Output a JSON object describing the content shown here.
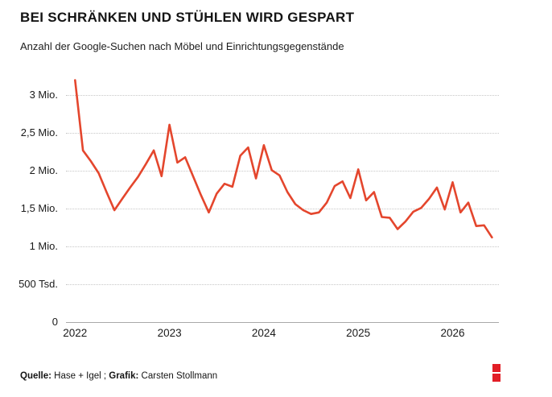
{
  "header": {
    "title": "BEI SCHRÄNKEN UND STÜHLEN WIRD GESPART",
    "subtitle": "Anzahl der Google-Suchen nach Möbel und Einrichtungsgegenstände"
  },
  "footer": {
    "source_label": "Quelle:",
    "source_value": " Hase + Igel ; ",
    "credit_label": "Grafik:",
    "credit_value": " Carsten Stollmann",
    "logo_color": "#e21e26"
  },
  "chart_data": {
    "type": "line",
    "title": "BEI SCHRÄNKEN UND STÜHLEN WIRD GESPART",
    "subtitle": "Anzahl der Google-Suchen nach Möbel und Einrichtungsgegenstände",
    "unit": "Millionen Suchanfragen",
    "frequency": "monthly",
    "x_start": "2022-01",
    "x_end": "2026-06",
    "line_color": "#e4462d",
    "grid": "horizontal dotted",
    "legend": "none",
    "ylim": [
      0,
      3.2
    ],
    "y_ticks": [
      {
        "label": "3 Mio.",
        "value": 3.0
      },
      {
        "label": "2,5 Mio.",
        "value": 2.5
      },
      {
        "label": "2 Mio.",
        "value": 2.0
      },
      {
        "label": "1,5 Mio.",
        "value": 1.5
      },
      {
        "label": "1 Mio.",
        "value": 1.0
      },
      {
        "label": "500 Tsd.",
        "value": 0.5
      },
      {
        "label": "0",
        "value": 0.0
      }
    ],
    "x_ticks": [
      {
        "label": "2022",
        "month_index": 0
      },
      {
        "label": "2023",
        "month_index": 12
      },
      {
        "label": "2024",
        "month_index": 24
      },
      {
        "label": "2025",
        "month_index": 36
      },
      {
        "label": "2026",
        "month_index": 48
      }
    ],
    "values_mio": [
      3.2,
      2.27,
      2.13,
      1.97,
      1.72,
      1.48,
      1.63,
      1.78,
      1.92,
      2.09,
      2.27,
      1.93,
      2.61,
      2.11,
      2.18,
      1.93,
      1.68,
      1.45,
      1.7,
      1.83,
      1.79,
      2.2,
      2.31,
      1.9,
      2.34,
      2.01,
      1.94,
      1.72,
      1.56,
      1.48,
      1.43,
      1.45,
      1.58,
      1.8,
      1.86,
      1.64,
      2.02,
      1.61,
      1.72,
      1.39,
      1.38,
      1.23,
      1.33,
      1.46,
      1.51,
      1.63,
      1.78,
      1.49,
      1.85,
      1.45,
      1.58,
      1.27,
      1.28,
      1.12
    ]
  }
}
